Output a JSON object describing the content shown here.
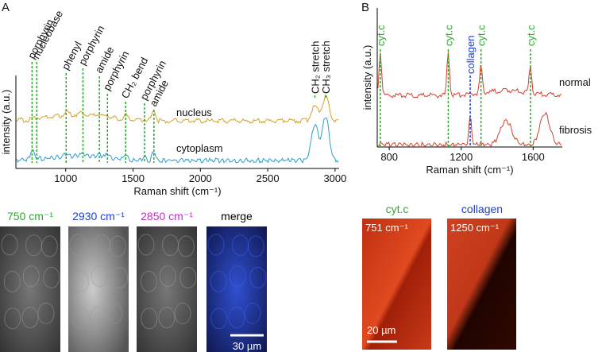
{
  "panel_a": {
    "label": "A",
    "ylabel": "intensity (a.u.)",
    "xlabel": "Raman shift (cm⁻¹)",
    "xlim": [
      630,
      3030
    ],
    "xticks": [
      1000,
      1500,
      2000,
      2500,
      3000
    ],
    "series": [
      {
        "name": "nucleus",
        "color": "#d4a02a"
      },
      {
        "name": "cytoplasm",
        "color": "#2a9fd0"
      }
    ],
    "peaks": [
      {
        "label": "porphyrin",
        "x": 750
      },
      {
        "label": "nucleobase",
        "x": 785
      },
      {
        "label": "phenyl",
        "x": 1003
      },
      {
        "label": "porphyrin",
        "x": 1128
      },
      {
        "label": "amide",
        "x": 1250
      },
      {
        "label": "porphyrin",
        "x": 1310
      },
      {
        "label": "CH₂ bend",
        "x": 1445
      },
      {
        "label": "porphyrin",
        "x": 1585
      },
      {
        "label": "amide",
        "x": 1655
      },
      {
        "label": "CH₂ stretch",
        "x": 2850
      },
      {
        "label": "CH₃ stretch",
        "x": 2930
      }
    ],
    "images": [
      {
        "label": "750 cm⁻¹",
        "color": "#2fa82f"
      },
      {
        "label": "2930 cm⁻¹",
        "color": "#2040d0"
      },
      {
        "label": "2850 cm⁻¹",
        "color": "#c030c0"
      },
      {
        "label": "merge",
        "color": "#000000"
      }
    ],
    "scale_bar": "30 µm"
  },
  "panel_b": {
    "label": "B",
    "ylabel": "intensity (a.u.)",
    "xlabel": "Raman shift (cm⁻¹)",
    "xlim": [
      733,
      1762
    ],
    "xticks": [
      800,
      1200,
      1600
    ],
    "series": [
      {
        "name": "normal",
        "color": "#d04030"
      },
      {
        "name": "fibrosis",
        "color": "#d04030"
      }
    ],
    "peaks": [
      {
        "label": "cyt.c",
        "x": 750,
        "color": "#2fa82f"
      },
      {
        "label": "cyt.c",
        "x": 1128,
        "color": "#2fa82f"
      },
      {
        "label": "collagen",
        "x": 1250,
        "color": "#2040d0"
      },
      {
        "label": "cyt.c",
        "x": 1310,
        "color": "#2fa82f"
      },
      {
        "label": "cyt.c",
        "x": 1585,
        "color": "#2fa82f"
      }
    ],
    "images": [
      {
        "title": "cyt.c",
        "title_color": "#2fa82f",
        "label": "751 cm⁻¹"
      },
      {
        "title": "collagen",
        "title_color": "#2040d0",
        "label": "1250 cm⁻¹"
      }
    ],
    "scale_bar": "20 µm"
  }
}
